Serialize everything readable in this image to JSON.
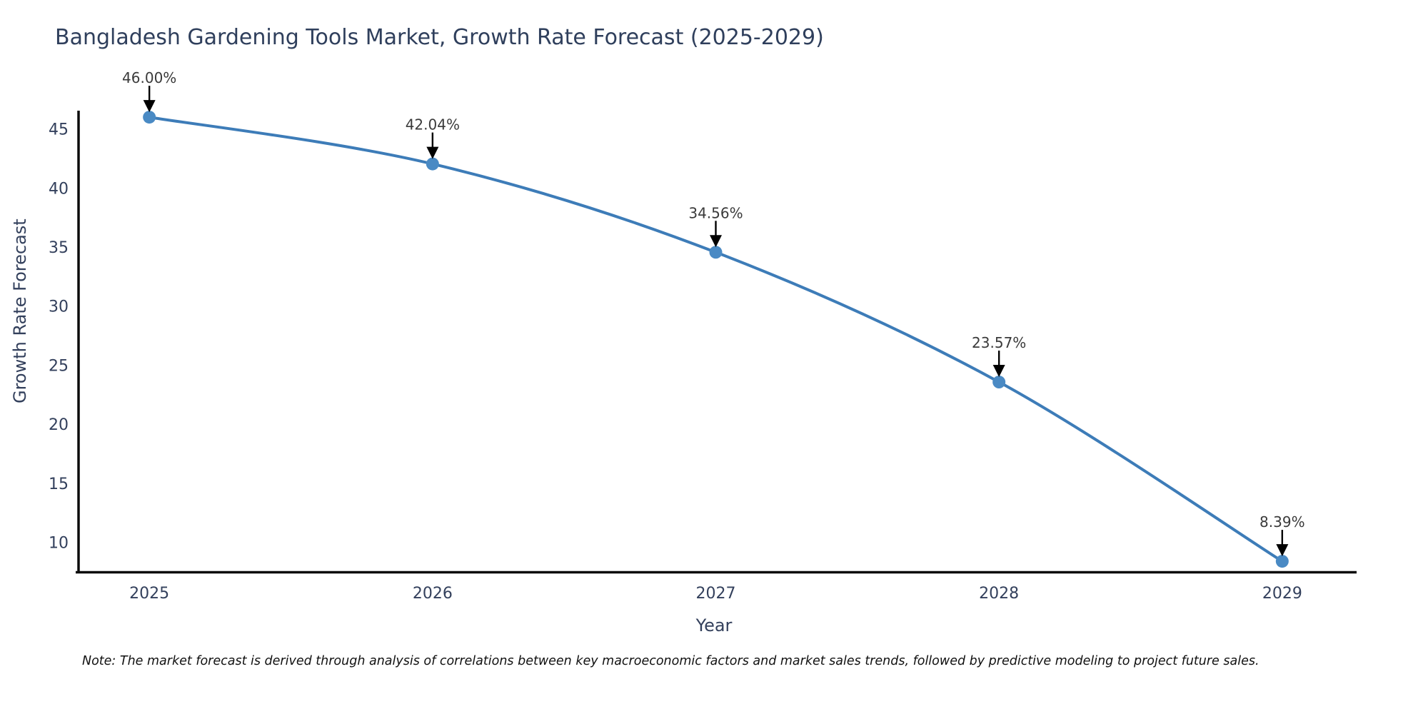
{
  "chart_data": {
    "type": "line",
    "title": "Bangladesh Gardening Tools Market, Growth Rate Forecast (2025-2029)",
    "xlabel": "Year",
    "ylabel": "Growth Rate Forecast",
    "categories": [
      2025,
      2026,
      2027,
      2028,
      2029
    ],
    "values": [
      46.0,
      42.04,
      34.56,
      23.57,
      8.39
    ],
    "point_labels": [
      "46.00%",
      "42.04%",
      "34.56%",
      "23.57%",
      "8.39%"
    ],
    "yticks": [
      10,
      15,
      20,
      25,
      30,
      35,
      40,
      45
    ],
    "ylim": [
      7.55,
      46.55
    ],
    "xlim": [
      2024.75,
      2029.25
    ],
    "grid": false,
    "legend": "none",
    "marker_style": "circle",
    "annotation_arrow": "black-down-arrow",
    "note": "Note: The market forecast is derived through analysis of correlations between key macroeconomic factors and market sales trends, followed by predictive modeling to project future sales.",
    "colors": {
      "line": "#3d7cb8",
      "marker": "#4a8ac4",
      "arrow": "#000000",
      "axis": "#0b0b0b",
      "title_text": "#2f3f5c",
      "tick_text": "#33405c",
      "label_text": "#3a3a3a",
      "note_text": "#111111",
      "background": "#ffffff"
    }
  }
}
